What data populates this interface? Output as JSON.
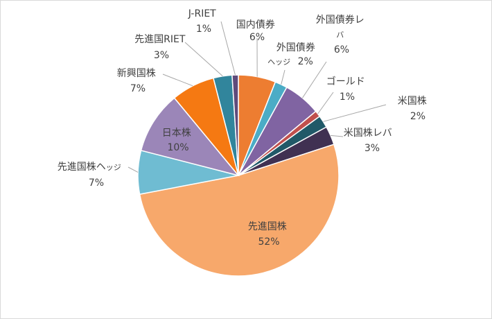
{
  "chart_data": {
    "type": "pie",
    "title": "",
    "slices": [
      {
        "label": "国内債券",
        "value": 6,
        "display": "6%",
        "color": "#ED7D31"
      },
      {
        "label": "外国債券ヘッジ",
        "value": 2,
        "display": "2%",
        "color": "#4BACC6"
      },
      {
        "label": "外国債券レバ",
        "value": 6,
        "display": "6%",
        "color": "#8064A2"
      },
      {
        "label": "ゴールド",
        "value": 1,
        "display": "1%",
        "color": "#C0504D"
      },
      {
        "label": "米国株",
        "value": 2,
        "display": "2%",
        "color": "#215968"
      },
      {
        "label": "米国株レバ",
        "value": 3,
        "display": "3%",
        "color": "#403152"
      },
      {
        "label": "先進国株",
        "value": 52,
        "display": "52%",
        "color": "#F7A86B"
      },
      {
        "label": "先進国株ヘッジ",
        "value": 7,
        "display": "7%",
        "color": "#6FBCD2"
      },
      {
        "label": "日本株",
        "value": 10,
        "display": "10%",
        "color": "#9B86B8"
      },
      {
        "label": "新興国株",
        "value": 7,
        "display": "7%",
        "color": "#F57912"
      },
      {
        "label": "先進国RIET",
        "value": 3,
        "display": "3%",
        "color": "#31859C"
      },
      {
        "label": "J-RIET",
        "value": 1,
        "display": "1%",
        "color": "#5F4B7B"
      }
    ]
  }
}
